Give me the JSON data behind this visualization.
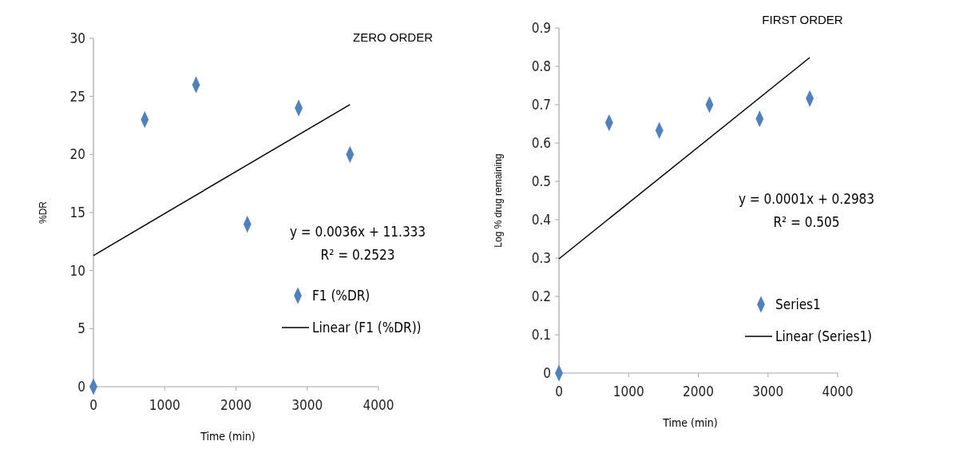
{
  "chart_data": [
    {
      "type": "scatter",
      "title": "ZERO ORDER",
      "xlabel": "Time (min)",
      "ylabel": "%DR",
      "xlim": [
        0,
        4000
      ],
      "xticks": [
        0,
        1000,
        2000,
        3000,
        4000
      ],
      "ylim": [
        0,
        30
      ],
      "yticks": [
        0,
        5,
        10,
        15,
        20,
        25,
        30
      ],
      "grid": false,
      "legend": "right",
      "annotations": [
        "y = 0.0036x + 11.333",
        "R² = 0.2523"
      ],
      "series": [
        {
          "name": "F1 (%DR)",
          "type": "scatter",
          "color": "#4f81bd",
          "marker": "diamond",
          "x": [
            0,
            720,
            1440,
            2160,
            2880,
            3600
          ],
          "values": [
            0,
            23,
            26,
            14,
            24,
            20
          ]
        },
        {
          "name": "Linear (F1 (%DR))",
          "type": "line",
          "color": "#000000",
          "marker": "none",
          "line_style": "solid",
          "x": [
            0,
            3600
          ],
          "values": [
            11.3,
            24.3
          ]
        }
      ]
    },
    {
      "type": "scatter",
      "title": "FIRST ORDER",
      "xlabel": "Time (min)",
      "ylabel": "Log % drug remaining",
      "xlim": [
        0,
        4000
      ],
      "xticks": [
        0,
        1000,
        2000,
        3000,
        4000
      ],
      "ylim": [
        0,
        0.9
      ],
      "yticks": [
        0,
        0.1,
        0.2,
        0.3,
        0.4,
        0.5,
        0.6,
        0.7,
        0.8,
        0.9
      ],
      "grid": false,
      "legend": "right",
      "annotations": [
        "y = 0.0001x + 0.2983",
        "R² = 0.505"
      ],
      "series": [
        {
          "name": "Series1",
          "type": "scatter",
          "color": "#4f81bd",
          "marker": "diamond",
          "x": [
            0,
            720,
            1440,
            2160,
            2880,
            3600
          ],
          "values": [
            0,
            0.653,
            0.633,
            0.7,
            0.663,
            0.716
          ]
        },
        {
          "name": "Linear (Series1)",
          "type": "line",
          "color": "#000000",
          "marker": "none",
          "line_style": "solid",
          "x": [
            0,
            3600
          ],
          "values": [
            0.298,
            0.823
          ]
        }
      ]
    }
  ]
}
